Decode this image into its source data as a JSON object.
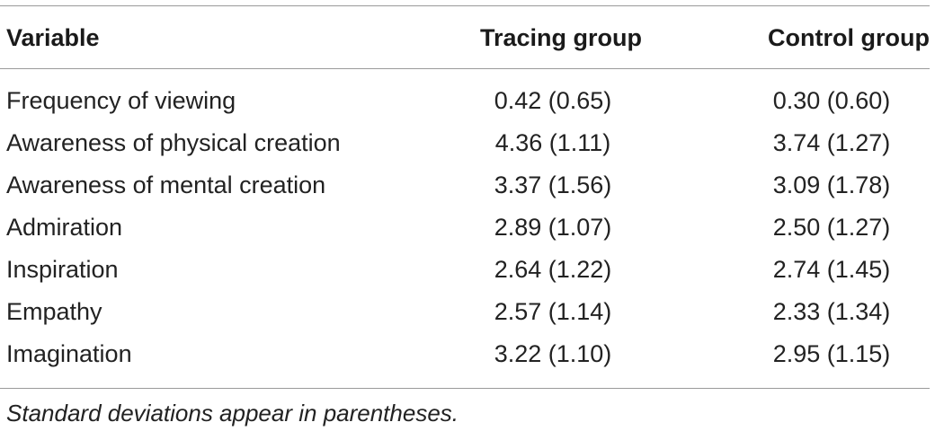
{
  "table": {
    "headers": {
      "variable": "Variable",
      "tracing": "Tracing group",
      "control": "Control group"
    },
    "rows": [
      {
        "variable": "Frequency of viewing",
        "tracing": "0.42 (0.65)",
        "control": "0.30 (0.60)"
      },
      {
        "variable": "Awareness of physical creation",
        "tracing": "4.36 (1.11)",
        "control": "3.74 (1.27)"
      },
      {
        "variable": "Awareness of mental creation",
        "tracing": "3.37 (1.56)",
        "control": "3.09 (1.78)"
      },
      {
        "variable": "Admiration",
        "tracing": "2.89 (1.07)",
        "control": "2.50 (1.27)"
      },
      {
        "variable": "Inspiration",
        "tracing": "2.64 (1.22)",
        "control": "2.74 (1.45)"
      },
      {
        "variable": "Empathy",
        "tracing": "2.57 (1.14)",
        "control": "2.33 (1.34)"
      },
      {
        "variable": "Imagination",
        "tracing": "3.22 (1.10)",
        "control": "2.95 (1.15)"
      }
    ],
    "footnote": "Standard deviations appear in parentheses."
  }
}
